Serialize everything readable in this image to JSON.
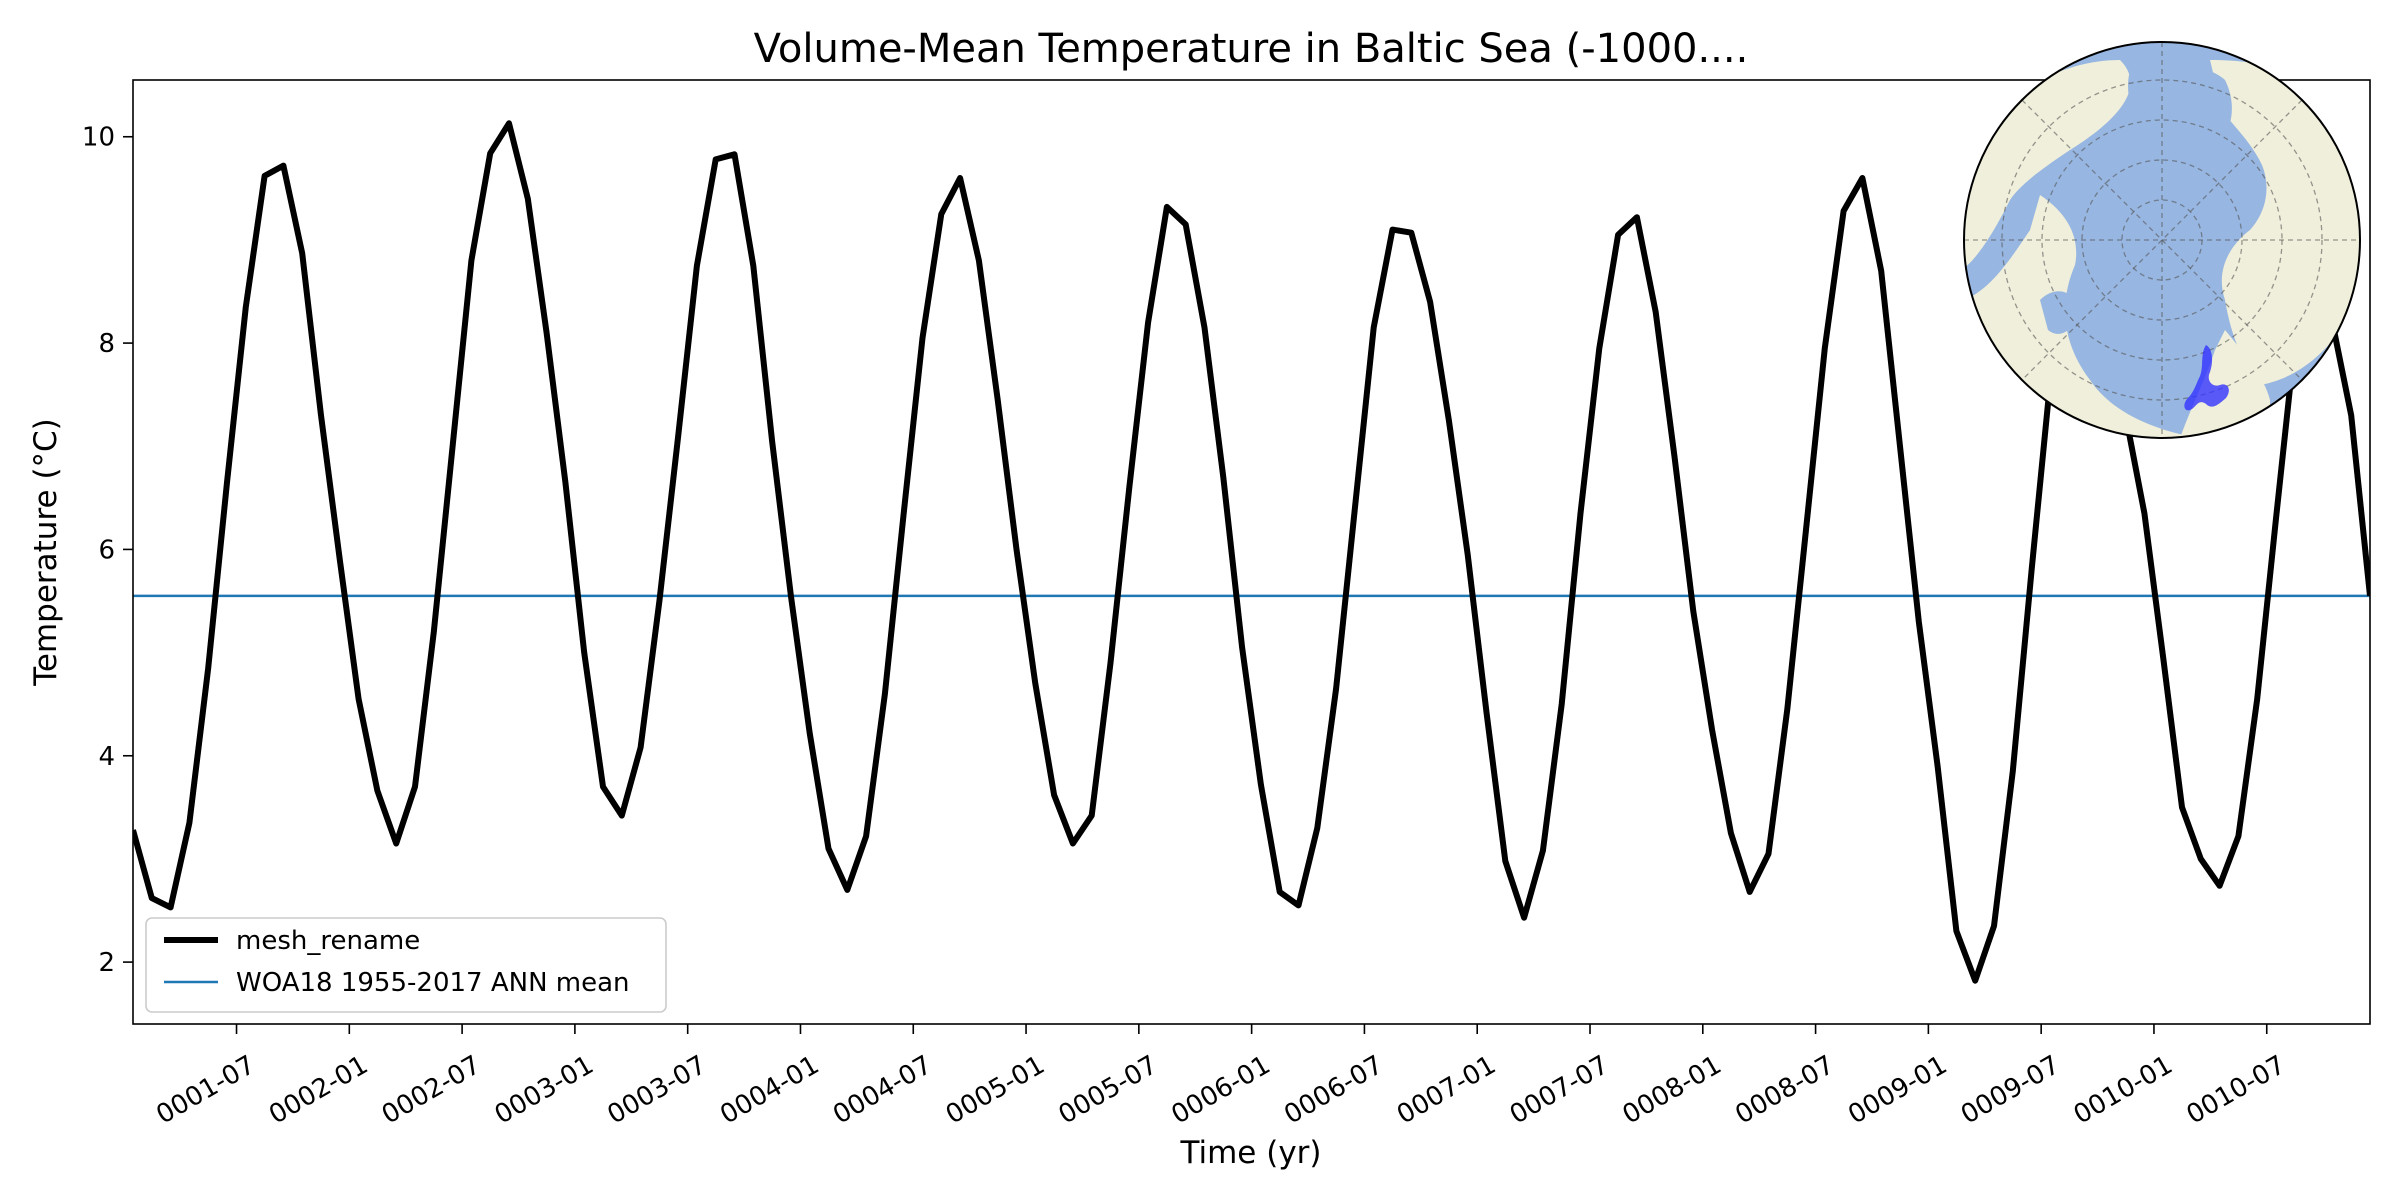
{
  "chart_data": {
    "type": "line",
    "title": "Volume-Mean Temperature in Baltic Sea (-1000....",
    "xlabel": "Time (yr)",
    "ylabel": "Temperature (°C)",
    "ylim": [
      1.4,
      10.55
    ],
    "xlim": [
      "0001-01-16",
      "0010-12-16"
    ],
    "grid": false,
    "legend_position": "lower-left",
    "x_tick_labels": [
      "0001-07",
      "0002-01",
      "0002-07",
      "0003-01",
      "0003-07",
      "0004-01",
      "0004-07",
      "0005-01",
      "0005-07",
      "0006-01",
      "0006-07",
      "0007-01",
      "0007-07",
      "0008-01",
      "0008-07",
      "0009-01",
      "0009-07",
      "0010-01",
      "0010-07"
    ],
    "y_ticks": [
      2,
      4,
      6,
      8,
      10
    ],
    "y_tick_labels": [
      "2",
      "4",
      "6",
      "8",
      "10"
    ],
    "series": [
      {
        "name": "mesh_rename",
        "color": "#000000",
        "x": [
          "0001-01",
          "0001-02",
          "0001-03",
          "0001-04",
          "0001-05",
          "0001-06",
          "0001-07",
          "0001-08",
          "0001-09",
          "0001-10",
          "0001-11",
          "0001-12",
          "0002-01",
          "0002-02",
          "0002-03",
          "0002-04",
          "0002-05",
          "0002-06",
          "0002-07",
          "0002-08",
          "0002-09",
          "0002-10",
          "0002-11",
          "0002-12",
          "0003-01",
          "0003-02",
          "0003-03",
          "0003-04",
          "0003-05",
          "0003-06",
          "0003-07",
          "0003-08",
          "0003-09",
          "0003-10",
          "0003-11",
          "0003-12",
          "0004-01",
          "0004-02",
          "0004-03",
          "0004-04",
          "0004-05",
          "0004-06",
          "0004-07",
          "0004-08",
          "0004-09",
          "0004-10",
          "0004-11",
          "0004-12",
          "0005-01",
          "0005-02",
          "0005-03",
          "0005-04",
          "0005-05",
          "0005-06",
          "0005-07",
          "0005-08",
          "0005-09",
          "0005-10",
          "0005-11",
          "0005-12",
          "0006-01",
          "0006-02",
          "0006-03",
          "0006-04",
          "0006-05",
          "0006-06",
          "0006-07",
          "0006-08",
          "0006-09",
          "0006-10",
          "0006-11",
          "0006-12",
          "0007-01",
          "0007-02",
          "0007-03",
          "0007-04",
          "0007-05",
          "0007-06",
          "0007-07",
          "0007-08",
          "0007-09",
          "0007-10",
          "0007-11",
          "0007-12",
          "0008-01",
          "0008-02",
          "0008-03",
          "0008-04",
          "0008-05",
          "0008-06",
          "0008-07",
          "0008-08",
          "0008-09",
          "0008-10",
          "0008-11",
          "0008-12",
          "0009-01",
          "0009-02",
          "0009-03",
          "0009-04",
          "0009-05",
          "0009-06",
          "0009-07",
          "0009-08",
          "0009-09",
          "0009-10",
          "0009-11",
          "0009-12",
          "0010-01",
          "0010-02",
          "0010-03",
          "0010-04",
          "0010-05",
          "0010-06",
          "0010-07",
          "0010-08",
          "0010-09",
          "0010-10",
          "0010-11",
          "0010-12"
        ],
        "values": [
          3.28,
          2.62,
          2.53,
          3.35,
          4.85,
          6.65,
          8.35,
          9.62,
          9.72,
          8.87,
          7.3,
          5.9,
          4.55,
          3.66,
          3.15,
          3.7,
          5.2,
          7.0,
          8.8,
          9.84,
          10.13,
          9.4,
          8.1,
          6.65,
          5.0,
          3.7,
          3.42,
          4.08,
          5.5,
          7.1,
          8.75,
          9.78,
          9.83,
          8.75,
          7.05,
          5.55,
          4.22,
          3.1,
          2.7,
          3.22,
          4.6,
          6.35,
          8.05,
          9.25,
          9.6,
          8.8,
          7.45,
          6.0,
          4.7,
          3.62,
          3.15,
          3.42,
          4.9,
          6.6,
          8.2,
          9.32,
          9.15,
          8.15,
          6.7,
          5.05,
          3.72,
          2.68,
          2.55,
          3.3,
          4.65,
          6.4,
          8.15,
          9.1,
          9.07,
          8.4,
          7.25,
          5.95,
          4.42,
          2.98,
          2.43,
          3.08,
          4.5,
          6.35,
          7.95,
          9.05,
          9.22,
          8.3,
          6.9,
          5.4,
          4.25,
          3.25,
          2.68,
          3.05,
          4.45,
          6.2,
          7.95,
          9.28,
          9.6,
          8.7,
          7.0,
          5.3,
          3.9,
          2.3,
          1.82,
          2.35,
          3.85,
          5.8,
          7.65,
          8.8,
          9.2,
          8.5,
          7.3,
          6.35,
          4.95,
          3.5,
          3.0,
          2.74,
          3.22,
          4.55,
          6.3,
          8.0,
          8.8,
          8.2,
          7.3,
          5.55
        ]
      },
      {
        "name": "WOA18 1955-2017 ANN mean",
        "color": "#1f77b4",
        "values": [
          5.55
        ]
      }
    ]
  },
  "inset_map": {
    "projection": "north-polar-stereographic",
    "ocean_color": "#97b6e1",
    "land_color": "#efefdb",
    "highlight_color": "#3333ff",
    "highlight_region": "Baltic Sea"
  }
}
